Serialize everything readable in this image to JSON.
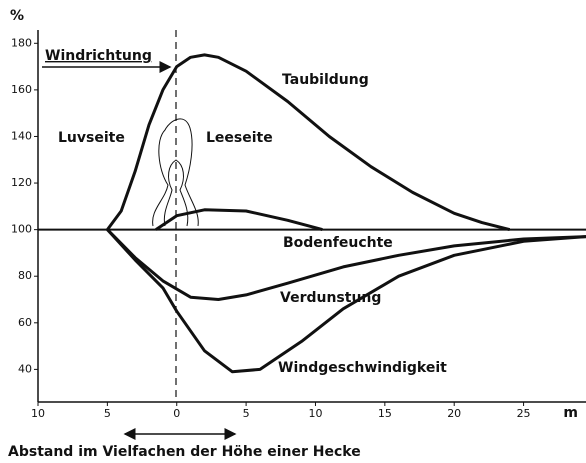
{
  "chart_data": {
    "type": "line",
    "y_label": "%",
    "x_unit": "m",
    "x_label": "Abstand im Vielfachen der Höhe einer Hecke",
    "annotations": [
      "Windrichtung",
      "Luvseite",
      "Leeseite"
    ],
    "xlim": [
      -10,
      29.5
    ],
    "ylim": [
      26,
      190
    ],
    "xticks": [
      {
        "value": -10,
        "label": "10"
      },
      {
        "value": -5,
        "label": "5"
      },
      0,
      5,
      10,
      15,
      20,
      25
    ],
    "yticks": [
      40,
      60,
      80,
      100,
      120,
      140,
      160,
      180
    ],
    "baseline": 100,
    "series": [
      {
        "name": "Taubildung",
        "color": "#111111",
        "x": [
          -5,
          -4,
          -3,
          -2,
          -1,
          0,
          1,
          2,
          3,
          5,
          8,
          11,
          14,
          17,
          20,
          22,
          24
        ],
        "values": [
          100,
          108,
          125,
          145,
          160,
          170,
          174,
          175,
          174,
          168,
          155,
          140,
          127,
          116,
          107,
          103,
          100
        ]
      },
      {
        "name": "Bodenfeuchte",
        "color": "#111111",
        "x": [
          -1.5,
          0,
          2,
          5,
          8,
          10.5
        ],
        "values": [
          100,
          106,
          108.5,
          108,
          104,
          100
        ]
      },
      {
        "name": "Verdunstung",
        "color": "#111111",
        "x": [
          -5,
          -3,
          -1,
          1,
          3,
          5,
          8,
          12,
          16,
          20,
          25,
          29.5
        ],
        "values": [
          100,
          88,
          78,
          71,
          70,
          72,
          77,
          84,
          89,
          93,
          96,
          97
        ]
      },
      {
        "name": "Windgeschwindigkeit",
        "color": "#111111",
        "x": [
          -5,
          -3,
          -1,
          0,
          2,
          4,
          6,
          9,
          12,
          16,
          20,
          25,
          29.5
        ],
        "values": [
          100,
          87,
          75,
          65,
          48,
          39,
          40,
          52,
          66,
          80,
          89,
          95,
          97
        ]
      }
    ]
  }
}
